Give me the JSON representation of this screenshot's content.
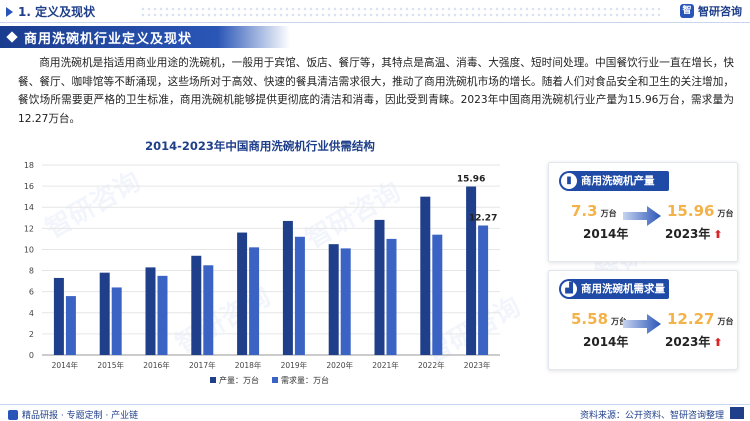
{
  "header": {
    "section_title": "1. 定义及现状",
    "brand_name": "智研咨询",
    "brand_logo_char": "智"
  },
  "banner": {
    "title": "商用洗碗机行业定义及现状"
  },
  "paragraph": "商用洗碗机是指适用商业用途的洗碗机，一般用于宾馆、饭店、餐厅等，其特点是高温、消毒、大强度、短时间处理。中国餐饮行业一直在增长，快餐、餐厅、咖啡馆等不断涌现，这些场所对于高效、快速的餐具清洁需求很大，推动了商用洗碗机市场的增长。随着人们对食品安全和卫生的关注增加，餐饮场所需要更严格的卫生标准，商用洗碗机能够提供更彻底的清洁和消毒，因此受到青睐。2023年中国商用洗碗机行业产量为15.96万台，需求量为12.27万台。",
  "chart_data": {
    "type": "bar",
    "title": "2014-2023年中国商用洗碗机行业供需结构",
    "categories": [
      "2014年",
      "2015年",
      "2016年",
      "2017年",
      "2018年",
      "2019年",
      "2020年",
      "2021年",
      "2022年",
      "2023年"
    ],
    "series": [
      {
        "name": "产量：万台",
        "color": "#1f3f8a",
        "values": [
          7.3,
          7.8,
          8.3,
          9.4,
          11.6,
          12.7,
          10.5,
          12.8,
          15.0,
          15.96
        ]
      },
      {
        "name": "需求量：万台",
        "color": "#3b63c4",
        "values": [
          5.58,
          6.4,
          7.5,
          8.5,
          10.2,
          11.2,
          10.1,
          11.0,
          11.4,
          12.27
        ]
      }
    ],
    "data_labels": {
      "last_production": "15.96",
      "last_demand": "12.27"
    },
    "yticks": [
      "0",
      "2",
      "4",
      "6",
      "8",
      "10",
      "12",
      "14",
      "16",
      "18"
    ],
    "ylim": [
      0,
      18
    ],
    "grid": true,
    "legend_position": "bottom"
  },
  "cards": [
    {
      "title": "商用洗碗机产量",
      "icon": "factory-icon",
      "left_value": "7.3",
      "left_unit": "万台",
      "left_year": "2014年",
      "right_value": "15.96",
      "right_unit": "万台",
      "right_year": "2023年"
    },
    {
      "title": "商用洗碗机需求量",
      "icon": "bar-chart-icon",
      "left_value": "5.58",
      "left_unit": "万台",
      "left_year": "2014年",
      "right_value": "12.27",
      "right_unit": "万台",
      "right_year": "2023年"
    }
  ],
  "footer": {
    "left": "精品研报 · 专题定制 · 产业链",
    "source": "资料来源：公开资料、智研咨询整理"
  },
  "watermark": "智研咨询",
  "colors": {
    "primary": "#1f3f8a",
    "accent": "#2a55b8",
    "highlight": "#f3b24a",
    "up": "#d8262b"
  }
}
